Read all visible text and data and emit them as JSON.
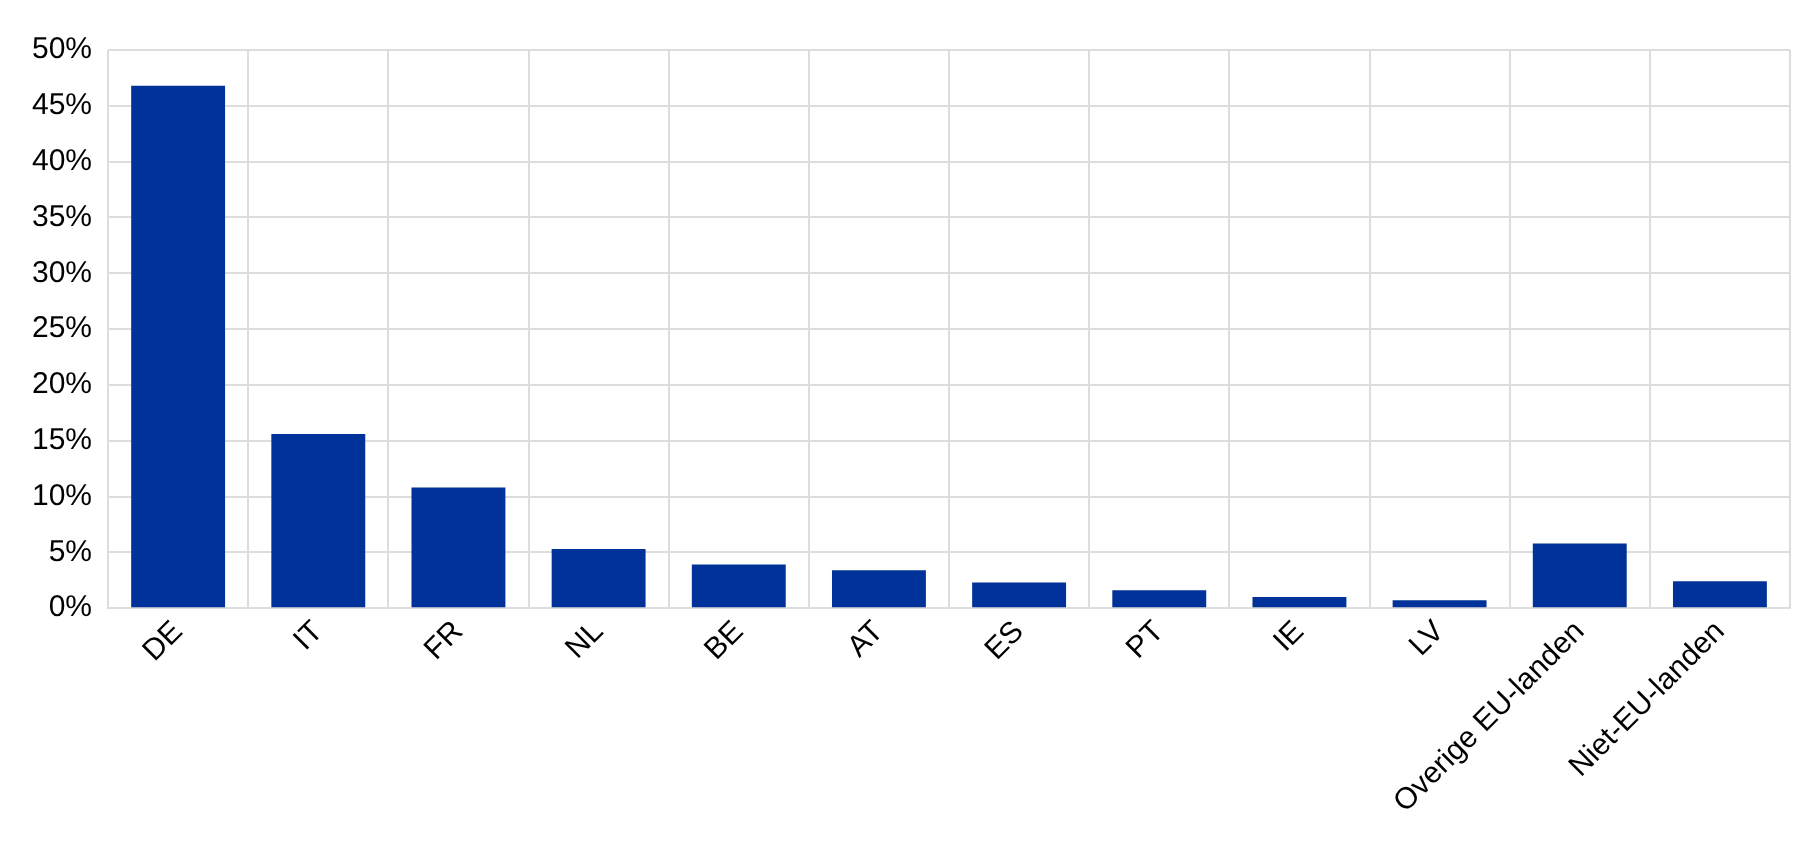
{
  "chart_data": {
    "type": "bar",
    "categories": [
      "DE",
      "IT",
      "FR",
      "NL",
      "BE",
      "AT",
      "ES",
      "PT",
      "IE",
      "LV",
      "Overige EU-landen",
      "Niet-EU-landen"
    ],
    "values": [
      46.8,
      15.6,
      10.8,
      5.3,
      3.9,
      3.4,
      2.3,
      1.6,
      1.0,
      0.7,
      5.8,
      2.4
    ],
    "color": "#003299",
    "ylim": [
      0,
      50
    ],
    "yticks": [
      {
        "value": 0,
        "label": "0%"
      },
      {
        "value": 5,
        "label": "5%"
      },
      {
        "value": 10,
        "label": "10%"
      },
      {
        "value": 15,
        "label": "15%"
      },
      {
        "value": 20,
        "label": "20%"
      },
      {
        "value": 25,
        "label": "25%"
      },
      {
        "value": 30,
        "label": "30%"
      },
      {
        "value": 35,
        "label": "35%"
      },
      {
        "value": 40,
        "label": "40%"
      },
      {
        "value": 45,
        "label": "45%"
      },
      {
        "value": 50,
        "label": "50%"
      }
    ],
    "grid": true,
    "legend": false
  }
}
